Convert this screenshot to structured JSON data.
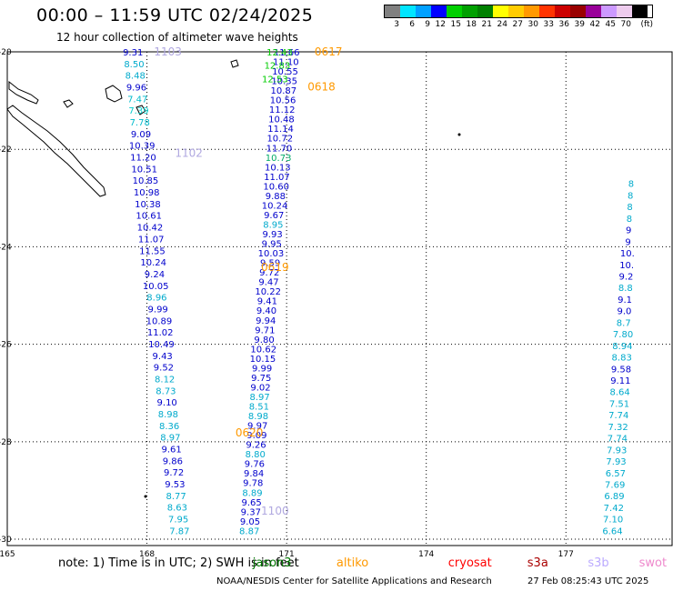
{
  "header": {
    "title": "00:00 – 11:59 UTC 02/24/2025",
    "subtitle": "12 hour collection of altimeter wave heights"
  },
  "scale": {
    "unit": "(ft)",
    "ticks": [
      "3",
      "6",
      "9",
      "12",
      "15",
      "18",
      "21",
      "24",
      "27",
      "30",
      "33",
      "36",
      "39",
      "42",
      "45",
      "70"
    ],
    "colors": [
      "#808080",
      "#00e5ff",
      "#00a0ff",
      "#0000ff",
      "#00d000",
      "#00a000",
      "#008000",
      "#ffff00",
      "#ffcc00",
      "#ff9900",
      "#ff3300",
      "#cc0000",
      "#990000",
      "#990099",
      "#cc99ff",
      "#eeccee",
      "#000000"
    ]
  },
  "map": {
    "lon_ticks": [
      "165",
      "168",
      "171",
      "174",
      "177"
    ],
    "lat_ticks": [
      "-20",
      "-22",
      "-24",
      "-26",
      "-28",
      "-30"
    ],
    "passes": [
      {
        "label": "1103",
        "label_lon": 168.45,
        "label_lat": -20.0,
        "label_color": "#b0a8e0"
      },
      {
        "label": "1102",
        "label_lon": 168.9,
        "label_lat": -22.08,
        "label_color": "#b0a8e0"
      },
      {
        "label": "0617",
        "label_lon": 171.9,
        "label_lat": -20.0,
        "label_color": "#ff9900"
      },
      {
        "label": "0618",
        "label_lon": 171.75,
        "label_lat": -20.72,
        "label_color": "#ff9900"
      },
      {
        "label": "0619",
        "label_lon": 170.75,
        "label_lat": -24.42,
        "label_color": "#ff9900"
      },
      {
        "label": "0620",
        "label_lon": 170.2,
        "label_lat": -27.82,
        "label_color": "#ff9900"
      },
      {
        "label": "1100",
        "label_lon": 170.75,
        "label_lat": -29.42,
        "label_color": "#b0a8e0"
      }
    ],
    "tracks": [
      {
        "name": "track-1103-1102",
        "start_lon": 167.7,
        "start_lat": -20.0,
        "end_lon": 168.7,
        "end_lat": -29.82,
        "values": [
          "9.31",
          "8.50",
          "8.48",
          "9.96",
          "7.47",
          "7.39",
          "7.78",
          "9.09",
          "10.39",
          "11.20",
          "10.51",
          "10.85",
          "10.98",
          "10.38",
          "10.61",
          "10.42",
          "11.07",
          "11.55",
          "10.24",
          "9.24",
          "10.05",
          "8.96",
          "9.99",
          "10.89",
          "11.02",
          "10.49",
          "9.43",
          "9.52",
          "8.12",
          "8.73",
          "9.10",
          "8.98",
          "8.36",
          "8.97",
          "9.61",
          "9.86",
          "9.72",
          "9.53",
          "8.77",
          "8.63",
          "7.95",
          "7.87"
        ],
        "colors": [
          "#0000cc",
          "#00aacc",
          "#00aacc",
          "#0000cc",
          "#00bbcc",
          "#00cccc",
          "#00bbcc",
          "#0000cc",
          "#0000cc",
          "#0000cc",
          "#0000cc",
          "#0000cc",
          "#0000cc",
          "#0000cc",
          "#0000cc",
          "#0000cc",
          "#0000cc",
          "#0000cc",
          "#0000cc",
          "#0000cc",
          "#0000cc",
          "#00aacc",
          "#0000cc",
          "#0000cc",
          "#0000cc",
          "#0000cc",
          "#0000cc",
          "#0000cc",
          "#00aacc",
          "#00aacc",
          "#0000cc",
          "#00aacc",
          "#00aacc",
          "#00aacc",
          "#0000cc",
          "#0000cc",
          "#0000cc",
          "#0000cc",
          "#00aacc",
          "#00aacc",
          "#00aacc",
          "#00aacc"
        ]
      },
      {
        "name": "track-0617-1100",
        "start_lon": 171.0,
        "start_lat": -20.0,
        "end_lon": 170.2,
        "end_lat": -29.82,
        "values": [
          "11.66",
          "11.10",
          "10.55",
          "10.35",
          "10.87",
          "10.56",
          "11.12",
          "10.48",
          "11.14",
          "10.72",
          "11.70",
          "10.73",
          "10.13",
          "11.07",
          "10.60",
          "9.88",
          "10.24",
          "9.67",
          "8.95",
          "9.93",
          "9.95",
          "10.03",
          "9.59",
          "9.72",
          "9.47",
          "10.22",
          "9.41",
          "9.40",
          "9.94",
          "9.71",
          "9.80",
          "10.62",
          "10.15",
          "9.99",
          "9.75",
          "9.02",
          "8.97",
          "8.51",
          "8.98",
          "9.97",
          "9.09",
          "9.26",
          "8.80",
          "9.76",
          "9.84",
          "9.78",
          "8.89",
          "9.65",
          "9.37",
          "9.05",
          "8.87"
        ],
        "colors": [
          "#0000cc",
          "#0000cc",
          "#0000cc",
          "#0000cc",
          "#0000cc",
          "#0000cc",
          "#0000cc",
          "#0000cc",
          "#0000cc",
          "#0000cc",
          "#0000cc",
          "#00aa66",
          "#0000cc",
          "#0000cc",
          "#0000cc",
          "#0000cc",
          "#0000cc",
          "#0000cc",
          "#00aacc",
          "#0000cc",
          "#0000cc",
          "#0000cc",
          "#0000cc",
          "#0000cc",
          "#0000cc",
          "#0000cc",
          "#0000cc",
          "#0000cc",
          "#0000cc",
          "#0000cc",
          "#0000cc",
          "#0000cc",
          "#0000cc",
          "#0000cc",
          "#0000cc",
          "#0000cc",
          "#00aacc",
          "#00aacc",
          "#00aacc",
          "#0000cc",
          "#0000cc",
          "#0000cc",
          "#00aacc",
          "#0000cc",
          "#0000cc",
          "#0000cc",
          "#00aacc",
          "#0000cc",
          "#0000cc",
          "#0000cc",
          "#00aacc"
        ]
      },
      {
        "name": "track-green-short",
        "start_lon": 170.85,
        "start_lat": -20.0,
        "end_lon": 170.75,
        "end_lat": -20.55,
        "values": [
          "12.43",
          "12.83",
          "12.53"
        ],
        "colors": [
          "#00cc00",
          "#00cc00",
          "#00cc00"
        ]
      },
      {
        "name": "track-east-edge",
        "start_lon": 178.4,
        "start_lat": -22.7,
        "end_lon": 178.0,
        "end_lat": -29.82,
        "values": [
          "8",
          "8",
          "8",
          "8",
          "9",
          "9",
          "10.",
          "10.",
          "9.2",
          "8.8",
          "9.1",
          "9.0",
          "8.7",
          "7.80",
          "8.94",
          "8.83",
          "9.58",
          "9.11",
          "8.64",
          "7.51",
          "7.74",
          "7.32",
          "7.74",
          "7.93",
          "7.93",
          "6.57",
          "7.69",
          "6.89",
          "7.42",
          "7.10",
          "6.64"
        ],
        "colors": [
          "#00aacc",
          "#00aacc",
          "#00aacc",
          "#00aacc",
          "#0000cc",
          "#0000cc",
          "#0000cc",
          "#0000cc",
          "#0000cc",
          "#00aacc",
          "#0000cc",
          "#0000cc",
          "#00aacc",
          "#00aacc",
          "#00aacc",
          "#00aacc",
          "#0000cc",
          "#0000cc",
          "#00aacc",
          "#00aacc",
          "#00aacc",
          "#00aacc",
          "#00aacc",
          "#00aacc",
          "#00aacc",
          "#00aacc",
          "#00aacc",
          "#00aacc",
          "#00aacc",
          "#00aacc",
          "#00aacc"
        ]
      }
    ]
  },
  "footer": {
    "note": "note: 1) Time is in UTC; 2) SWH is in feet",
    "satellites": [
      {
        "name": "jason3",
        "color": "#007700",
        "lon": 170.7
      },
      {
        "name": "altiko",
        "color": "#ff9900",
        "lon": 172.5
      },
      {
        "name": "cryosat",
        "color": "#ff0000",
        "lon": 174.9
      },
      {
        "name": "s3a",
        "color": "#aa0000",
        "lon": 176.6
      },
      {
        "name": "s3b",
        "color": "#bbaaff",
        "lon": 177.9
      },
      {
        "name": "swot",
        "color": "#ee88cc",
        "lon": 179.0
      }
    ],
    "credit": "NOAA/NESDIS Center for Satellite Applications and Research",
    "generated": "27 Feb 08:25:43 UTC 2025"
  }
}
